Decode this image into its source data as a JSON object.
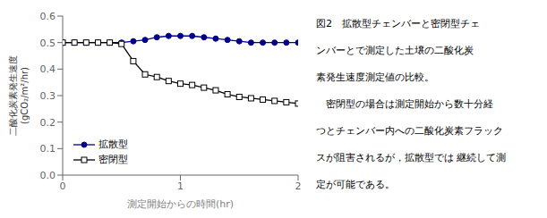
{
  "chart_data": {
    "type": "line",
    "xlabel": "測定開始からの時間(hr)",
    "ylabel": [
      "二酸化炭素発生速度",
      "(gCO₂/m²/hr)"
    ],
    "x": [
      0,
      0.1,
      0.2,
      0.3,
      0.4,
      0.5,
      0.6,
      0.7,
      0.8,
      0.9,
      1.0,
      1.1,
      1.2,
      1.3,
      1.4,
      1.5,
      1.6,
      1.7,
      1.8,
      1.9,
      2.0
    ],
    "series": [
      {
        "name": "拡散型",
        "color": "#00008B",
        "marker": "circle",
        "values": [
          0.5,
          0.5,
          0.5,
          0.5,
          0.5,
          0.5,
          0.505,
          0.51,
          0.52,
          0.525,
          0.525,
          0.525,
          0.52,
          0.515,
          0.51,
          0.505,
          0.5,
          0.5,
          0.5,
          0.5,
          0.5
        ]
      },
      {
        "name": "密閉型",
        "color": "#000000",
        "marker": "open_square",
        "values": [
          0.5,
          0.5,
          0.5,
          0.5,
          0.5,
          0.495,
          0.43,
          0.38,
          0.37,
          0.355,
          0.345,
          0.34,
          0.33,
          0.32,
          0.305,
          0.295,
          0.29,
          0.285,
          0.28,
          0.275,
          0.27
        ]
      }
    ],
    "xlim": [
      0,
      2.0
    ],
    "ylim": [
      0,
      0.6
    ],
    "xticks": [
      0,
      1,
      2
    ],
    "yticks": [
      {
        "value": 0,
        "label": "0.0"
      },
      0.1,
      0.2,
      0.3,
      0.4,
      0.5,
      0.6
    ],
    "grid": false,
    "legend": "lower left",
    "annotations": [
      "図2　拡散型チェンバーと密閉型チェ",
      "ンバーとで測定した土壌の二酸化炭",
      "素発生速度測定値の比較。",
      "　密閉型の場合は測定開始から数十分経",
      "つとチェンバー内への二酸化炭素フラック",
      "スが阻害されるが，拡散型では 継続して測",
      "定が可能である。"
    ]
  }
}
